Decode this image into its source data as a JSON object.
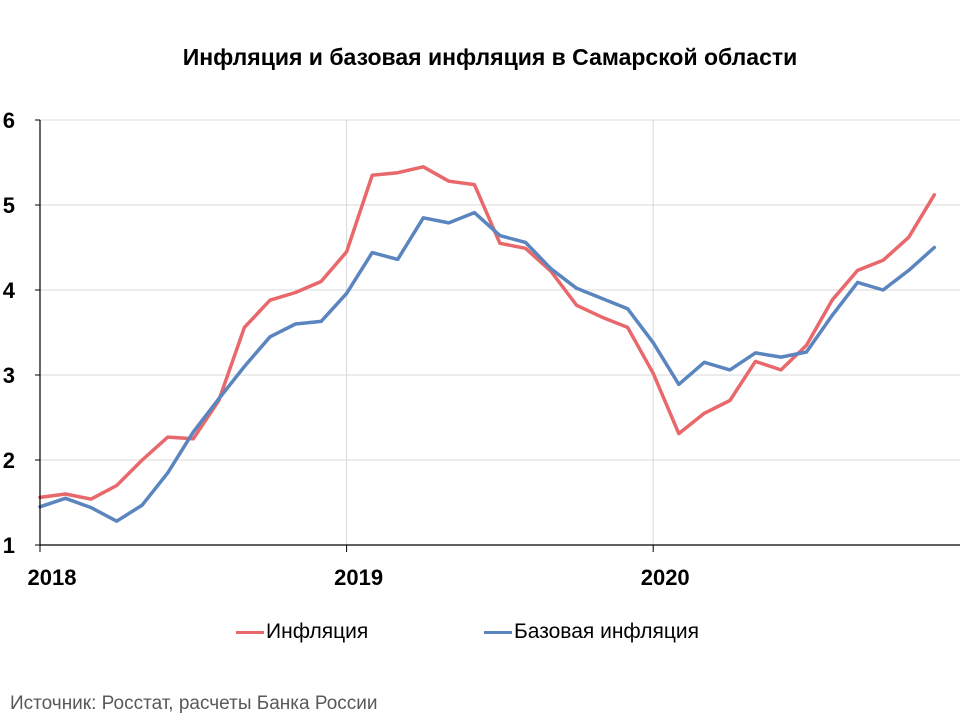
{
  "chart_data": {
    "type": "line",
    "title": "Инфляция и базовая инфляция в Самарской области",
    "x_tick_labels": [
      "2018",
      "2019",
      "2020"
    ],
    "y_tick_labels": [
      "1",
      "2",
      "3",
      "4",
      "5",
      "6"
    ],
    "ylim": [
      1,
      6
    ],
    "grid": true,
    "legend_placement": "bottom",
    "series": [
      {
        "name": "Инфляция",
        "color": "#E8686B",
        "values": [
          1.56,
          1.6,
          1.54,
          1.7,
          2.0,
          2.27,
          2.25,
          2.7,
          3.56,
          3.88,
          3.97,
          4.1,
          4.45,
          5.35,
          5.38,
          5.45,
          5.28,
          5.24,
          4.55,
          4.49,
          4.22,
          3.82,
          3.68,
          3.56,
          3.02,
          2.31,
          2.55,
          2.7,
          3.16,
          3.06,
          3.35,
          3.88,
          4.23,
          4.35,
          4.62,
          5.12
        ]
      },
      {
        "name": "Базовая инфляция",
        "color": "#5B85BF",
        "values": [
          1.45,
          1.55,
          1.44,
          1.28,
          1.47,
          1.85,
          2.33,
          2.72,
          3.1,
          3.45,
          3.6,
          3.63,
          3.96,
          4.44,
          4.36,
          4.85,
          4.79,
          4.91,
          4.64,
          4.56,
          4.25,
          4.02,
          3.9,
          3.78,
          3.38,
          2.89,
          3.15,
          3.06,
          3.26,
          3.21,
          3.27,
          3.7,
          4.09,
          4.0,
          4.23,
          4.5
        ]
      }
    ],
    "source": "Источник: Росстат, расчеты Банка России"
  }
}
